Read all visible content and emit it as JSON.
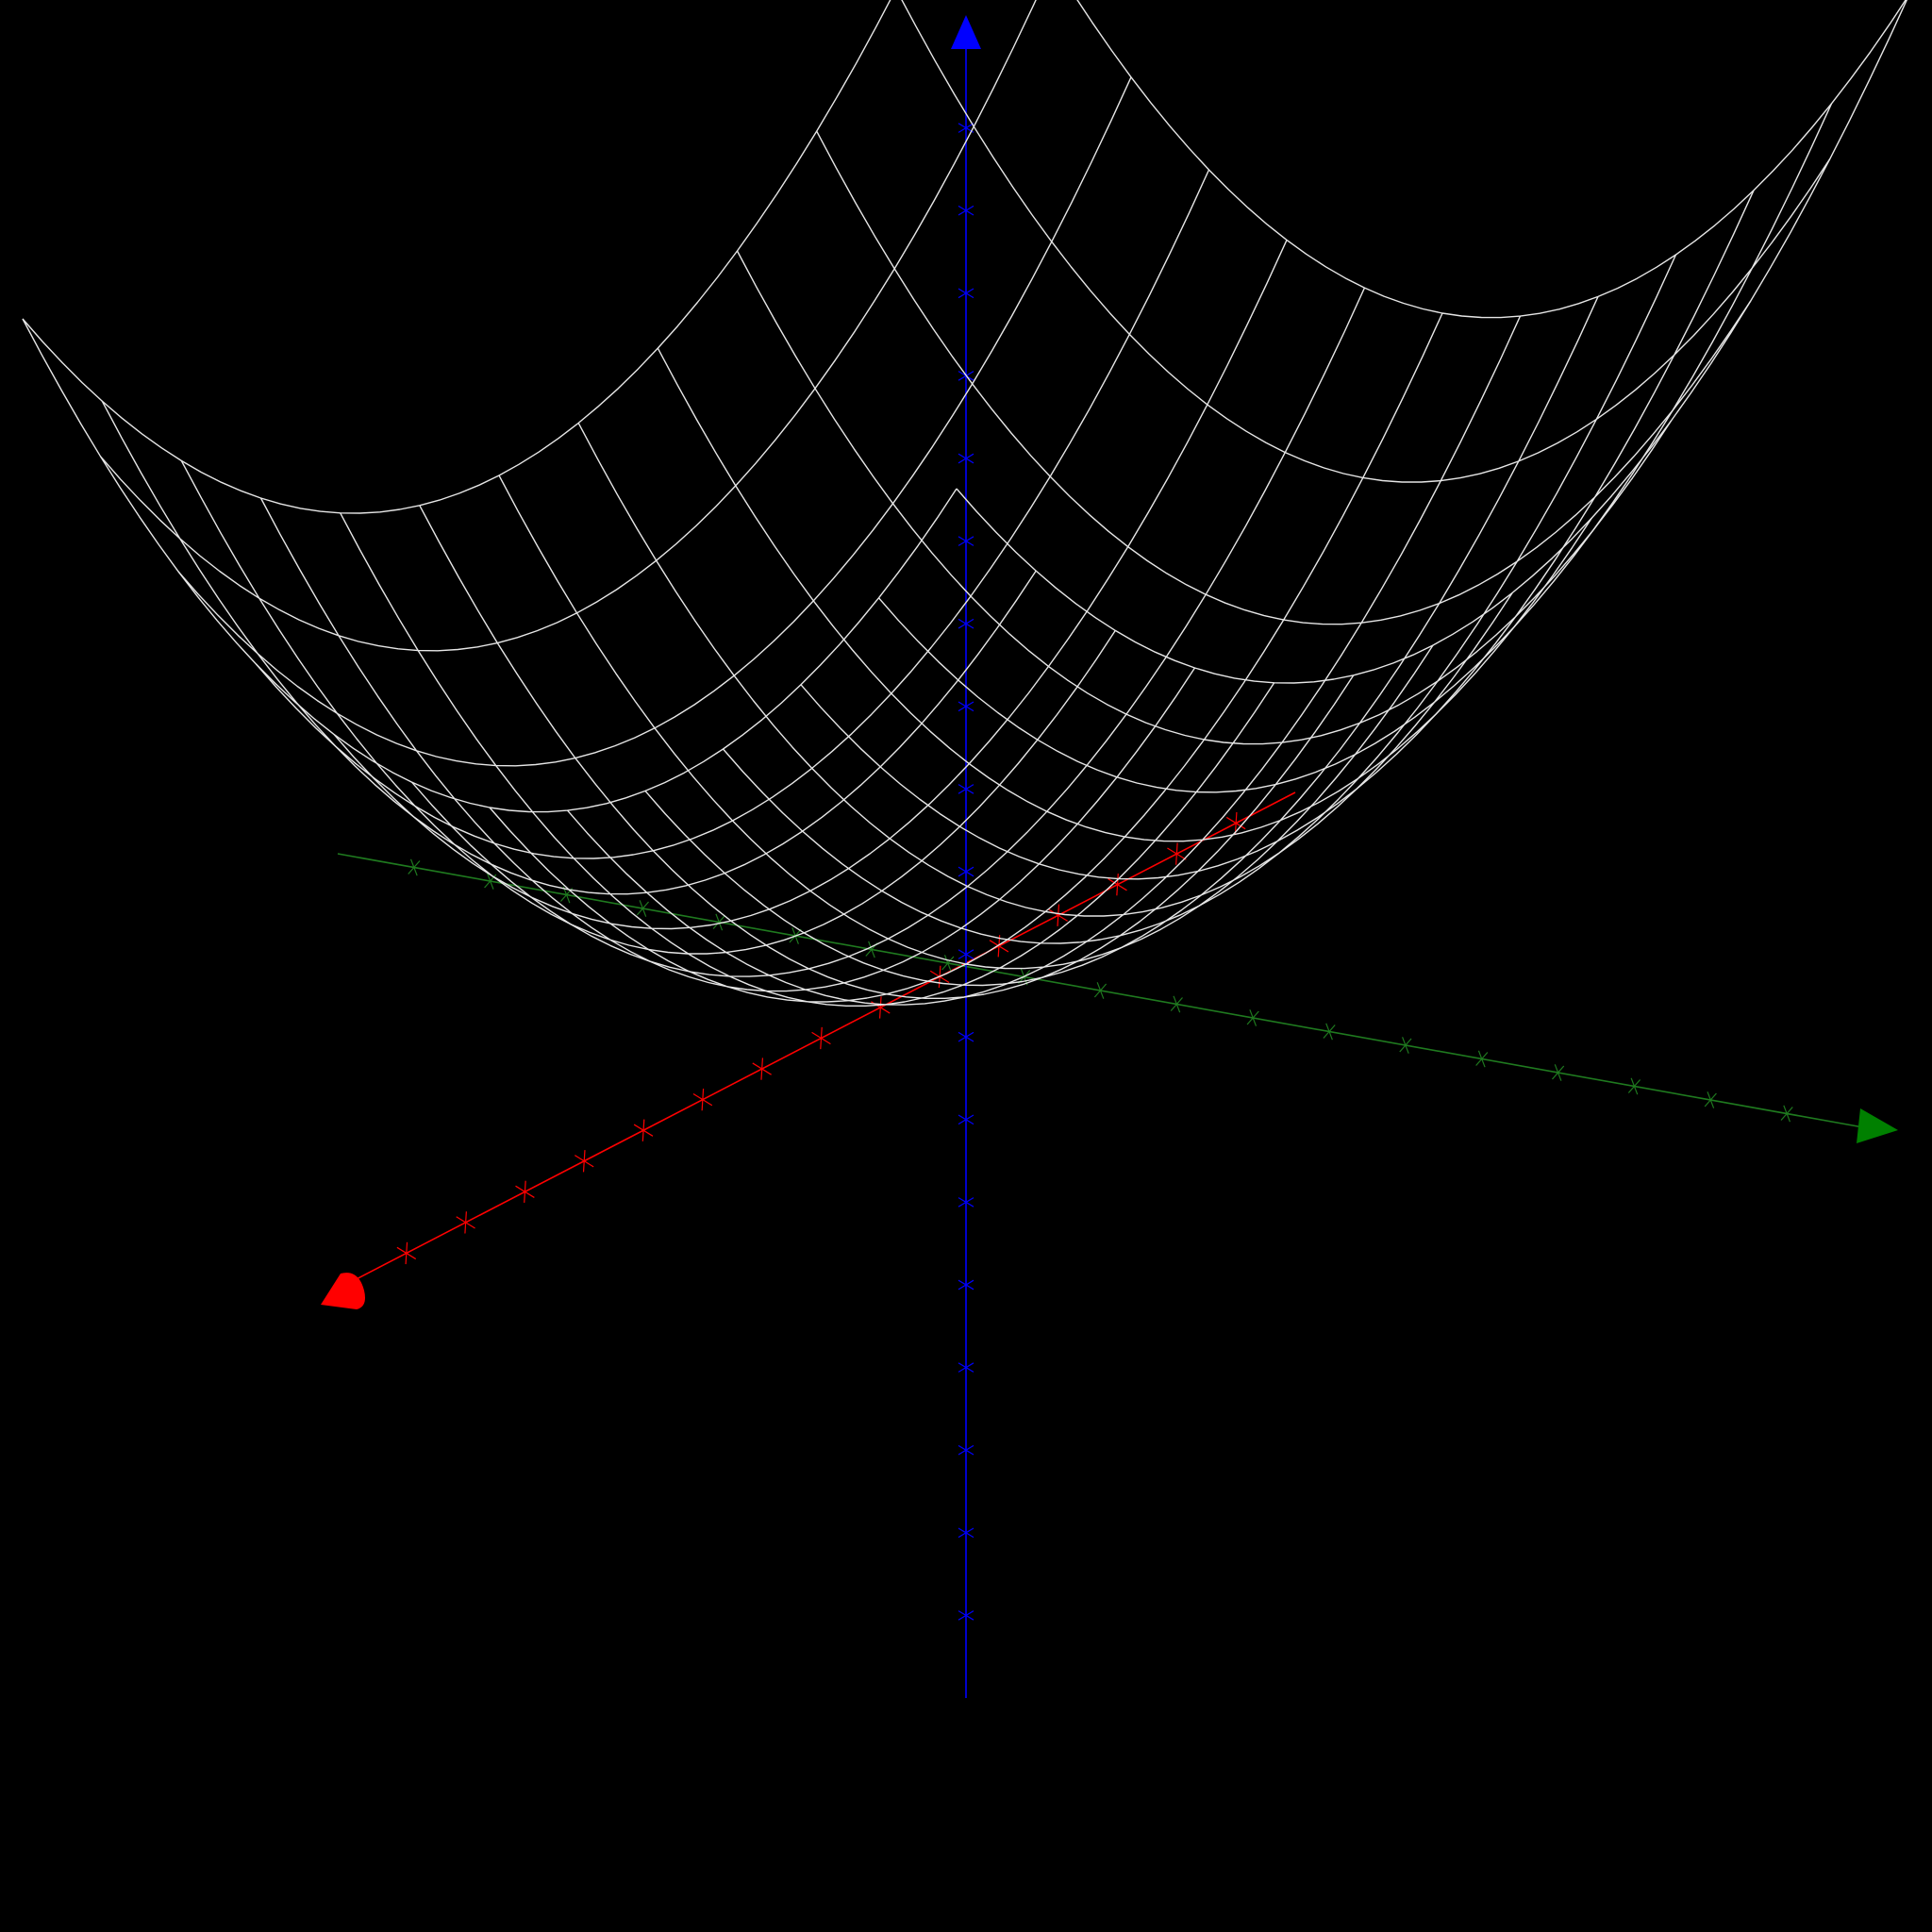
{
  "scene": {
    "type": "3d-wireframe-surface",
    "surface": "paraboloid",
    "function": "z = x^2 + y^2",
    "grid": {
      "u_steps": 12,
      "v_steps": 12,
      "range": [
        -1,
        1
      ]
    },
    "colors": {
      "background": "#000000",
      "surface": "#e8e8e8",
      "x_axis": "#ff0000",
      "y_axis": "#008000",
      "z_axis": "#0000ff"
    },
    "axes": [
      {
        "name": "x",
        "color": "#ff0000",
        "arrow": "cone",
        "tick_count": 16
      },
      {
        "name": "y",
        "color": "#008000",
        "arrow": "cone",
        "tick_count": 20
      },
      {
        "name": "z",
        "color": "#0000ff",
        "arrow": "cone",
        "tick_count": 20
      }
    ]
  }
}
